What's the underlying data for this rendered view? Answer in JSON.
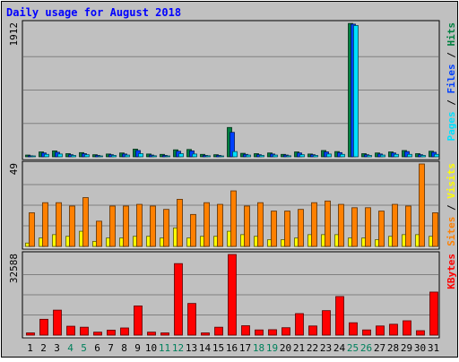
{
  "title": "Daily usage for August 2018",
  "colors": {
    "background": "#c0c0c0",
    "title": "#0000ff",
    "grid": "#808080",
    "hits": "#008040",
    "files": "#0040ff",
    "pages": "#00e0ff",
    "visits": "#ffff00",
    "sites": "#ff8000",
    "kbytes": "#ff0000",
    "weekend_day": "#00805c",
    "weekday": "#000000"
  },
  "chart_data": [
    {
      "type": "bar",
      "panel": "hits-files-pages",
      "ylabel_parts": [
        "Pages",
        "Files",
        "Hits"
      ],
      "ymax_label": "1912",
      "ylim": [
        0,
        1912
      ],
      "categories": [
        "1",
        "2",
        "3",
        "4",
        "5",
        "6",
        "7",
        "8",
        "9",
        "10",
        "11",
        "12",
        "13",
        "14",
        "15",
        "16",
        "17",
        "18",
        "19",
        "20",
        "21",
        "22",
        "23",
        "24",
        "25",
        "26",
        "27",
        "28",
        "29",
        "30",
        "31"
      ],
      "series": [
        {
          "name": "Hits",
          "values": [
            25,
            70,
            85,
            45,
            60,
            30,
            40,
            55,
            110,
            40,
            35,
            100,
            105,
            35,
            30,
            420,
            50,
            45,
            55,
            35,
            70,
            40,
            90,
            75,
            1910,
            45,
            55,
            70,
            90,
            45,
            80
          ]
        },
        {
          "name": "Files",
          "values": [
            15,
            55,
            65,
            30,
            45,
            20,
            30,
            40,
            90,
            25,
            20,
            80,
            85,
            20,
            20,
            350,
            35,
            30,
            40,
            25,
            55,
            30,
            70,
            60,
            1900,
            30,
            40,
            55,
            75,
            30,
            65
          ]
        },
        {
          "name": "Pages",
          "values": [
            10,
            35,
            40,
            20,
            30,
            10,
            20,
            25,
            45,
            15,
            10,
            45,
            40,
            15,
            10,
            75,
            25,
            20,
            25,
            15,
            30,
            20,
            40,
            35,
            1880,
            20,
            25,
            35,
            35,
            20,
            35
          ]
        }
      ]
    },
    {
      "type": "bar",
      "panel": "visits-sites",
      "ylabel_parts": [
        "Sites",
        "Visits"
      ],
      "ymax_label": "49",
      "ylim": [
        0,
        49
      ],
      "categories": [
        "1",
        "2",
        "3",
        "4",
        "5",
        "6",
        "7",
        "8",
        "9",
        "10",
        "11",
        "12",
        "13",
        "14",
        "15",
        "16",
        "17",
        "18",
        "19",
        "20",
        "21",
        "22",
        "23",
        "24",
        "25",
        "26",
        "27",
        "28",
        "29",
        "30",
        "31"
      ],
      "series": [
        {
          "name": "Visits",
          "values": [
            2,
            5,
            7,
            6,
            9,
            3,
            5,
            5,
            6,
            6,
            5,
            11,
            5,
            6,
            6,
            9,
            7,
            6,
            4,
            4,
            5,
            7,
            7,
            7,
            5,
            5,
            4,
            6,
            7,
            7,
            6
          ]
        },
        {
          "name": "Sites",
          "values": [
            20,
            26,
            26,
            24,
            29,
            15,
            24,
            24,
            25,
            24,
            22,
            28,
            19,
            26,
            25,
            33,
            24,
            26,
            21,
            21,
            22,
            26,
            27,
            25,
            23,
            23,
            21,
            25,
            24,
            49,
            20
          ]
        }
      ]
    },
    {
      "type": "bar",
      "panel": "kbytes",
      "ylabel_parts": [
        "KBytes"
      ],
      "ymax_label": "32588",
      "ylim": [
        0,
        32588
      ],
      "categories": [
        "1",
        "2",
        "3",
        "4",
        "5",
        "6",
        "7",
        "8",
        "9",
        "10",
        "11",
        "12",
        "13",
        "14",
        "15",
        "16",
        "17",
        "18",
        "19",
        "20",
        "21",
        "22",
        "23",
        "24",
        "25",
        "26",
        "27",
        "28",
        "29",
        "30",
        "31"
      ],
      "series": [
        {
          "name": "KBytes",
          "values": [
            900,
            6400,
            10100,
            3600,
            3200,
            1200,
            2000,
            2900,
            11800,
            1200,
            900,
            28900,
            12800,
            900,
            3200,
            33500,
            3800,
            2100,
            2200,
            3000,
            8700,
            3700,
            9900,
            15600,
            5000,
            2100,
            3700,
            4400,
            5800,
            1800,
            17400
          ]
        }
      ]
    }
  ],
  "weekend_days": [
    4,
    5,
    11,
    12,
    18,
    19,
    25,
    26
  ]
}
